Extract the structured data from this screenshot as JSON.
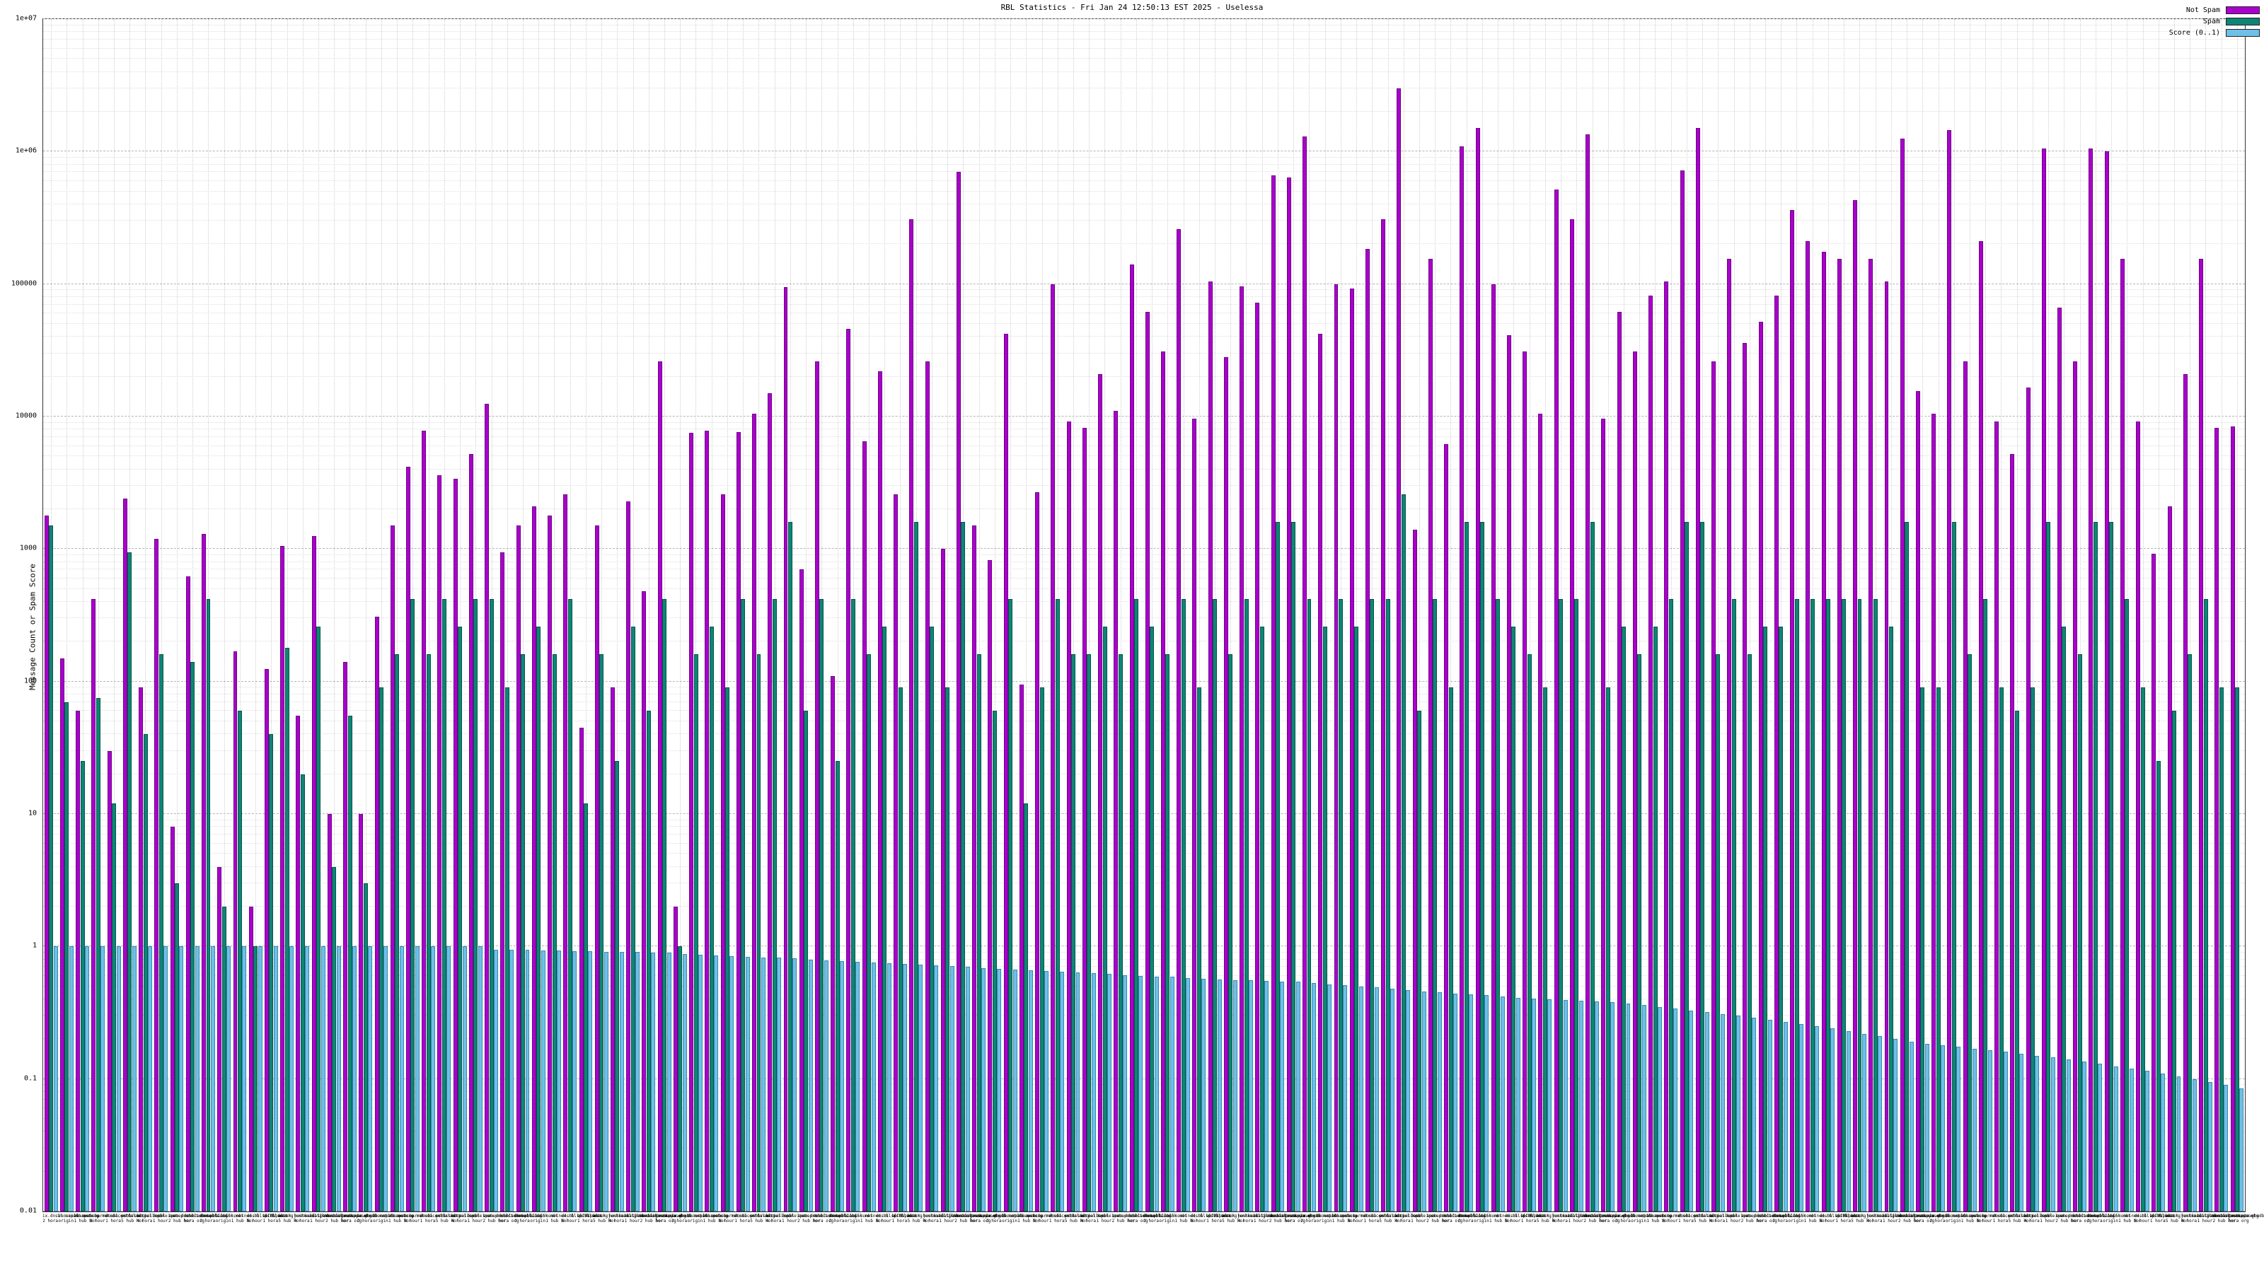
{
  "title": "RBL Statistics - Fri Jan 24 12:50:13 EST 2025 - Uselessa",
  "ylabel": "Message Count or Spam Score",
  "yticks": [
    "0.01",
    "0.1",
    "1",
    "10",
    "100",
    "1000",
    "10000",
    "100000",
    "1e+06",
    "1e+07"
  ],
  "legend": [
    {
      "label": "Not Spam",
      "color": "#aa00cc",
      "border": "#6e0087"
    },
    {
      "label": "Spam",
      "color": "#0e8574",
      "border": "#06564a"
    },
    {
      "label": "Score (0..1)",
      "color": "#6ec0e6",
      "border": "#3c86b4"
    }
  ],
  "chart_data": {
    "type": "bar",
    "ylog": true,
    "ylim": [
      0.01,
      10000000
    ],
    "title": "RBL Statistics - Fri Jan 24 12:50:13 EST 2025 - Uselessa",
    "xlabel": "",
    "ylabel": "Message Count or Spam Score",
    "legend_position": "top-right",
    "grid": true,
    "categories": [
      "ix.dnsbl.manitu.net|2 hora",
      "zen.spamhaus.org|origin",
      "bl.spamcop.net|1 hub hor",
      "b.barracudacentral.org|8 hour",
      "dnsbl.sorbs.net|1 hora",
      "psbl.surriel.com|5 hub hor",
      "bl.mailspike.net|4 hora",
      "dnsbl-1.uceprotect.net|1 hour",
      "spam.dnsbl.anonmails.de|2 hub hor",
      "dnsbl.dronebl.org|hora org",
      "db.wpbl.info|2 hora",
      "all.s5h.net|origin",
      "combined.rbl.msrbl.net|1 hub hor",
      "dnsbl.spfbl.net|8 hour",
      "bl.0spam.org|1 hora",
      "black.junkemailfilter.com|5 hub hor",
      "hostkarma.junkemail.com|4 hora",
      "bl.spameatingmonkey.net|1 hour",
      "dnsbl.justspam.org|2 hub hor",
      "truncate.gbudb.net|hora org",
      "ix.dnsbl.manitu.net|2 hora",
      "zen.spamhaus.org|origin",
      "bl.spamcop.net|1 hub hor",
      "b.barracudacentral.org|8 hour",
      "dnsbl.sorbs.net|1 hora",
      "psbl.surriel.com|5 hub hor",
      "bl.mailspike.net|4 hora",
      "dnsbl-1.uceprotect.net|1 hour",
      "spam.dnsbl.anonmails.de|2 hub hor",
      "dnsbl.dronebl.org|hora org",
      "db.wpbl.info|2 hora",
      "all.s5h.net|origin",
      "combined.rbl.msrbl.net|1 hub hor",
      "dnsbl.spfbl.net|8 hour",
      "bl.0spam.org|1 hora",
      "black.junkemailfilter.com|5 hub hor",
      "hostkarma.junkemail.com|4 hora",
      "bl.spameatingmonkey.net|1 hour",
      "dnsbl.justspam.org|2 hub hor",
      "truncate.gbudb.net|hora org",
      "ix.dnsbl.manitu.net|2 hora",
      "zen.spamhaus.org|origin",
      "bl.spamcop.net|1 hub hor",
      "b.barracudacentral.org|8 hour",
      "dnsbl.sorbs.net|1 hora",
      "psbl.surriel.com|5 hub hor",
      "bl.mailspike.net|4 hora",
      "dnsbl-1.uceprotect.net|1 hour",
      "spam.dnsbl.anonmails.de|2 hub hor",
      "dnsbl.dronebl.org|hora org",
      "db.wpbl.info|2 hora",
      "all.s5h.net|origin",
      "combined.rbl.msrbl.net|1 hub hor",
      "dnsbl.spfbl.net|8 hour",
      "bl.0spam.org|1 hora",
      "black.junkemailfilter.com|5 hub hor",
      "hostkarma.junkemail.com|4 hora",
      "bl.spameatingmonkey.net|1 hour",
      "dnsbl.justspam.org|2 hub hor",
      "truncate.gbudb.net|hora org",
      "ix.dnsbl.manitu.net|2 hora",
      "zen.spamhaus.org|origin",
      "bl.spamcop.net|1 hub hor",
      "b.barracudacentral.org|8 hour",
      "dnsbl.sorbs.net|1 hora",
      "psbl.surriel.com|5 hub hor",
      "bl.mailspike.net|4 hora",
      "dnsbl-1.uceprotect.net|1 hour",
      "spam.dnsbl.anonmails.de|2 hub hor",
      "dnsbl.dronebl.org|hora org",
      "db.wpbl.info|2 hora",
      "all.s5h.net|origin",
      "combined.rbl.msrbl.net|1 hub hor",
      "dnsbl.spfbl.net|8 hour",
      "bl.0spam.org|1 hora",
      "black.junkemailfilter.com|5 hub hor",
      "hostkarma.junkemail.com|4 hora",
      "bl.spameatingmonkey.net|1 hour",
      "dnsbl.justspam.org|2 hub hor",
      "truncate.gbudb.net|hora org",
      "ix.dnsbl.manitu.net|2 hora",
      "zen.spamhaus.org|origin",
      "bl.spamcop.net|1 hub hor",
      "b.barracudacentral.org|8 hour",
      "dnsbl.sorbs.net|1 hora",
      "psbl.surriel.com|5 hub hor",
      "bl.mailspike.net|4 hora",
      "dnsbl-1.uceprotect.net|1 hour",
      "spam.dnsbl.anonmails.de|2 hub hor",
      "dnsbl.dronebl.org|hora org",
      "db.wpbl.info|2 hora",
      "all.s5h.net|origin",
      "combined.rbl.msrbl.net|1 hub hor",
      "dnsbl.spfbl.net|8 hour",
      "bl.0spam.org|1 hora",
      "black.junkemailfilter.com|5 hub hor",
      "hostkarma.junkemail.com|4 hora",
      "bl.spameatingmonkey.net|1 hour",
      "dnsbl.justspam.org|2 hub hor",
      "truncate.gbudb.net|hora org",
      "ix.dnsbl.manitu.net|2 hora",
      "zen.spamhaus.org|origin",
      "bl.spamcop.net|1 hub hor",
      "b.barracudacentral.org|8 hour",
      "dnsbl.sorbs.net|1 hora",
      "psbl.surriel.com|5 hub hor",
      "bl.mailspike.net|4 hora",
      "dnsbl-1.uceprotect.net|1 hour",
      "spam.dnsbl.anonmails.de|2 hub hor",
      "dnsbl.dronebl.org|hora org",
      "db.wpbl.info|2 hora",
      "all.s5h.net|origin",
      "combined.rbl.msrbl.net|1 hub hor",
      "dnsbl.spfbl.net|8 hour",
      "bl.0spam.org|1 hora",
      "black.junkemailfilter.com|5 hub hor",
      "hostkarma.junkemail.com|4 hora",
      "bl.spameatingmonkey.net|1 hour",
      "dnsbl.justspam.org|2 hub hor",
      "truncate.gbudb.net|hora org",
      "ix.dnsbl.manitu.net|2 hora",
      "zen.spamhaus.org|origin",
      "bl.spamcop.net|1 hub hor",
      "b.barracudacentral.org|8 hour",
      "dnsbl.sorbs.net|1 hora",
      "psbl.surriel.com|5 hub hor",
      "bl.mailspike.net|4 hora",
      "dnsbl-1.uceprotect.net|1 hour",
      "spam.dnsbl.anonmails.de|2 hub hor",
      "dnsbl.dronebl.org|hora org",
      "db.wpbl.info|2 hora",
      "all.s5h.net|origin",
      "combined.rbl.msrbl.net|1 hub hor",
      "dnsbl.spfbl.net|8 hour",
      "bl.0spam.org|1 hora",
      "black.junkemailfilter.com|5 hub hor",
      "hostkarma.junkemail.com|4 hora",
      "bl.spameatingmonkey.net|1 hour",
      "dnsbl.justspam.org|2 hub hor",
      "truncate.gbudb.net|hora org"
    ],
    "series": [
      {
        "name": "Not Spam",
        "color": "#aa00cc",
        "border": "#6e0087",
        "values": [
          1800,
          150,
          60,
          420,
          30,
          2400,
          90,
          1200,
          8,
          620,
          1300,
          4,
          170,
          2,
          125,
          1050,
          55,
          1250,
          10,
          140,
          10,
          310,
          1500,
          4200,
          7800,
          3600,
          3400,
          5200,
          12500,
          950,
          1500,
          2100,
          1800,
          2600,
          45,
          1500,
          90,
          2300,
          480,
          26000,
          2,
          7500,
          7800,
          2600,
          7600,
          10500,
          15000,
          95000,
          700,
          26000,
          110,
          46000,
          6500,
          22000,
          2600,
          310000,
          26000,
          1000,
          700000,
          1500,
          820,
          42000,
          95,
          2700,
          100000,
          9200,
          8200,
          21000,
          11000,
          140000,
          62000,
          31000,
          260000,
          9600,
          105000,
          28000,
          96000,
          72000,
          660000,
          640000,
          1300000,
          42000,
          100000,
          92000,
          185000,
          310000,
          3000000,
          1400,
          155000,
          6200,
          1100000,
          1500000,
          100000,
          41000,
          31000,
          10500,
          520000,
          310000,
          1350000,
          9600,
          62000,
          31000,
          82000,
          105000,
          720000,
          1500000,
          26000,
          155000,
          36000,
          52000,
          82000,
          360000,
          210000,
          175000,
          155000,
          430000,
          155000,
          105000,
          1250000,
          15500,
          10500,
          1450000,
          26000,
          210000,
          9200,
          5200,
          16500,
          1050000,
          66000,
          26000,
          1050000,
          1000000,
          155000,
          9200,
          920,
          2100,
          21000,
          155000,
          8200,
          8400
        ]
      },
      {
        "name": "Spam",
        "color": "#0e8574",
        "border": "#06564a",
        "values": [
          1500,
          70,
          25,
          75,
          12,
          950,
          40,
          160,
          3,
          140,
          420,
          2,
          60,
          1,
          40,
          180,
          20,
          260,
          4,
          55,
          3,
          90,
          160,
          420,
          160,
          420,
          260,
          420,
          420,
          90,
          160,
          260,
          160,
          420,
          12,
          160,
          25,
          260,
          60,
          420,
          1,
          160,
          260,
          90,
          420,
          160,
          420,
          1600,
          60,
          420,
          25,
          420,
          160,
          260,
          90,
          1600,
          260,
          90,
          1600,
          160,
          60,
          420,
          12,
          90,
          420,
          160,
          160,
          260,
          160,
          420,
          260,
          160,
          420,
          90,
          420,
          160,
          420,
          260,
          1600,
          1600,
          420,
          260,
          420,
          260,
          420,
          420,
          2600,
          60,
          420,
          90,
          1600,
          1600,
          420,
          260,
          160,
          90,
          420,
          420,
          1600,
          90,
          260,
          160,
          260,
          420,
          1600,
          1600,
          160,
          420,
          160,
          260,
          260,
          420,
          420,
          420,
          420,
          420,
          420,
          260,
          1600,
          90,
          90,
          1600,
          160,
          420,
          90,
          60,
          90,
          1600,
          260,
          160,
          1600,
          1600,
          420,
          90,
          25,
          60,
          160,
          420,
          90,
          90
        ]
      },
      {
        "name": "Score (0..1)",
        "color": "#6ec0e6",
        "border": "#3c86b4",
        "values": [
          1,
          1,
          1,
          1,
          1,
          1,
          1,
          1,
          1,
          1,
          1,
          1,
          1,
          1,
          1,
          1,
          1,
          1,
          1,
          1,
          1,
          1,
          1,
          1,
          1,
          1,
          1,
          1,
          0.95,
          0.945,
          0.94,
          0.935,
          0.93,
          0.925,
          0.92,
          0.915,
          0.91,
          0.905,
          0.9,
          0.895,
          0.88,
          0.87,
          0.86,
          0.85,
          0.84,
          0.83,
          0.82,
          0.81,
          0.8,
          0.79,
          0.78,
          0.77,
          0.76,
          0.75,
          0.74,
          0.73,
          0.72,
          0.71,
          0.7,
          0.69,
          0.68,
          0.67,
          0.66,
          0.65,
          0.645,
          0.64,
          0.63,
          0.62,
          0.61,
          0.6,
          0.595,
          0.59,
          0.58,
          0.57,
          0.565,
          0.56,
          0.555,
          0.55,
          0.545,
          0.54,
          0.53,
          0.52,
          0.51,
          0.5,
          0.49,
          0.48,
          0.47,
          0.46,
          0.45,
          0.44,
          0.435,
          0.43,
          0.42,
          0.41,
          0.405,
          0.4,
          0.395,
          0.39,
          0.385,
          0.38,
          0.37,
          0.36,
          0.35,
          0.34,
          0.33,
          0.32,
          0.31,
          0.3,
          0.29,
          0.28,
          0.27,
          0.26,
          0.25,
          0.24,
          0.23,
          0.22,
          0.21,
          0.2,
          0.19,
          0.185,
          0.18,
          0.175,
          0.17,
          0.165,
          0.16,
          0.155,
          0.15,
          0.145,
          0.14,
          0.135,
          0.13,
          0.125,
          0.12,
          0.115,
          0.11,
          0.105,
          0.1,
          0.095,
          0.09,
          0.085
        ]
      }
    ]
  }
}
